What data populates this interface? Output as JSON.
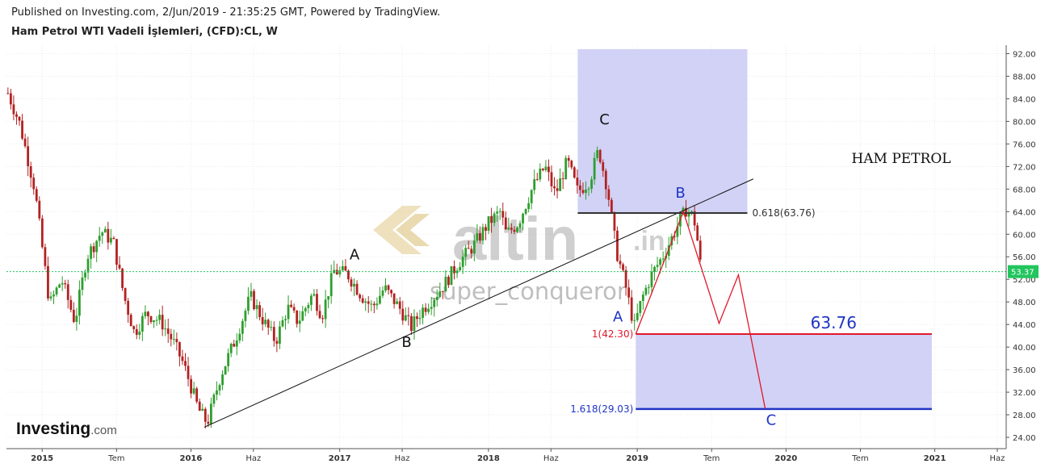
{
  "header": {
    "published": "Published on Investing.com, 2/Jun/2019 - 21:35:25 GMT, Powered by TradingView.",
    "symbol": "Ham Petrol WTI Vadeli İşlemleri, (CFD):CL, W"
  },
  "branding": {
    "name": "Investing",
    "suffix": ".com"
  },
  "watermark": {
    "logo_text": "altin",
    "logo_suffix": ".in",
    "user": "super_conqueror"
  },
  "colors": {
    "up": "#2e9e2e",
    "down": "#b22222",
    "zone": "#c9caf3",
    "red": "#e0182b",
    "blue": "#1f35c4",
    "current": "#22c55e"
  },
  "chart_data": {
    "type": "candlestick",
    "title": "HAM PETROL",
    "timeframe": "W",
    "xlim": [
      2014.76,
      2021.48
    ],
    "ylim": [
      22,
      93.5
    ],
    "y_ticks": [
      "92.00",
      "88.00",
      "84.00",
      "80.00",
      "76.00",
      "72.00",
      "68.00",
      "64.00",
      "60.00",
      "56.00",
      "52.00",
      "48.00",
      "44.00",
      "40.00",
      "36.00",
      "32.00",
      "28.00",
      "24.00"
    ],
    "x_ticks": [
      {
        "t": 2015.0,
        "label": "2015",
        "major": true
      },
      {
        "t": 2015.5,
        "label": "Tem",
        "major": false
      },
      {
        "t": 2016.0,
        "label": "2016",
        "major": true
      },
      {
        "t": 2016.42,
        "label": "Haz",
        "major": false
      },
      {
        "t": 2017.0,
        "label": "2017",
        "major": true
      },
      {
        "t": 2017.42,
        "label": "Haz",
        "major": false
      },
      {
        "t": 2018.0,
        "label": "2018",
        "major": true
      },
      {
        "t": 2018.42,
        "label": "Haz",
        "major": false
      },
      {
        "t": 2019.0,
        "label": "2019",
        "major": true
      },
      {
        "t": 2019.5,
        "label": "Tem",
        "major": false
      },
      {
        "t": 2020.0,
        "label": "2020",
        "major": true
      },
      {
        "t": 2020.5,
        "label": "Tem",
        "major": false
      },
      {
        "t": 2021.0,
        "label": "2021",
        "major": true
      },
      {
        "t": 2021.42,
        "label": "Haz",
        "major": false
      }
    ],
    "last_price": {
      "value": 53.37,
      "label": "53.37"
    },
    "price_path": [
      [
        2014.77,
        85.0
      ],
      [
        2014.85,
        79.5
      ],
      [
        2014.95,
        68.0
      ],
      [
        2015.05,
        47.5
      ],
      [
        2015.13,
        52.0
      ],
      [
        2015.22,
        44.5
      ],
      [
        2015.3,
        56.0
      ],
      [
        2015.4,
        60.5
      ],
      [
        2015.48,
        58.5
      ],
      [
        2015.55,
        49.0
      ],
      [
        2015.62,
        42.5
      ],
      [
        2015.7,
        46.0
      ],
      [
        2015.8,
        44.5
      ],
      [
        2015.88,
        41.0
      ],
      [
        2015.95,
        37.0
      ],
      [
        2016.05,
        29.0
      ],
      [
        2016.11,
        26.5
      ],
      [
        2016.2,
        35.0
      ],
      [
        2016.3,
        41.5
      ],
      [
        2016.4,
        49.0
      ],
      [
        2016.48,
        45.0
      ],
      [
        2016.57,
        41.0
      ],
      [
        2016.65,
        47.0
      ],
      [
        2016.72,
        44.5
      ],
      [
        2016.82,
        49.5
      ],
      [
        2016.88,
        45.5
      ],
      [
        2016.96,
        53.5
      ],
      [
        2017.05,
        53.0
      ],
      [
        2017.15,
        49.0
      ],
      [
        2017.22,
        47.0
      ],
      [
        2017.3,
        50.5
      ],
      [
        2017.4,
        47.0
      ],
      [
        2017.48,
        43.5
      ],
      [
        2017.55,
        46.5
      ],
      [
        2017.62,
        48.5
      ],
      [
        2017.7,
        51.0
      ],
      [
        2017.8,
        55.0
      ],
      [
        2017.9,
        58.0
      ],
      [
        2018.0,
        62.0
      ],
      [
        2018.08,
        64.0
      ],
      [
        2018.12,
        60.0
      ],
      [
        2018.2,
        62.0
      ],
      [
        2018.3,
        68.5
      ],
      [
        2018.38,
        72.0
      ],
      [
        2018.45,
        67.0
      ],
      [
        2018.53,
        73.0
      ],
      [
        2018.6,
        67.5
      ],
      [
        2018.68,
        69.5
      ],
      [
        2018.74,
        75.0
      ],
      [
        2018.8,
        68.0
      ],
      [
        2018.86,
        57.0
      ],
      [
        2018.92,
        51.0
      ],
      [
        2018.96,
        46.0
      ],
      [
        2018.98,
        43.5
      ],
      [
        2019.03,
        48.5
      ],
      [
        2019.1,
        53.0
      ],
      [
        2019.18,
        56.5
      ],
      [
        2019.28,
        62.0
      ],
      [
        2019.33,
        64.5
      ],
      [
        2019.38,
        63.0
      ],
      [
        2019.41,
        58.0
      ],
      [
        2019.43,
        53.4
      ]
    ],
    "labels": [
      {
        "text": "A",
        "t": 2017.1,
        "v": 55.5,
        "color": "#111"
      },
      {
        "text": "B",
        "t": 2017.45,
        "v": 40.0,
        "color": "#111"
      },
      {
        "text": "C",
        "t": 2018.78,
        "v": 79.5,
        "color": "#111"
      },
      {
        "text": "A",
        "t": 2018.87,
        "v": 44.5,
        "color": "#1f35c4"
      },
      {
        "text": "B",
        "t": 2019.29,
        "v": 66.5,
        "color": "#1f35c4"
      },
      {
        "text": "C",
        "t": 2019.9,
        "v": 26.2,
        "color": "#1f35c4"
      }
    ],
    "fib_levels": [
      {
        "label": "0.618(63.76)",
        "value": 63.76
      },
      {
        "label": "1(42.30)",
        "value": 42.3
      },
      {
        "label": "1.618(29.03)",
        "value": 29.03
      }
    ],
    "target_label": "63.76",
    "trendline": [
      [
        2016.09,
        25.8
      ],
      [
        2019.78,
        69.8
      ]
    ],
    "projection": [
      [
        2018.99,
        42.3
      ],
      [
        2019.31,
        64.0
      ],
      [
        2019.47,
        50.8
      ],
      [
        2019.55,
        44.2
      ],
      [
        2019.68,
        52.8
      ],
      [
        2019.86,
        29.1
      ]
    ],
    "zones": [
      {
        "t1": 2018.6,
        "t2": 2019.74,
        "v1": 63.76,
        "v2": 92.8
      },
      {
        "t1": 2018.99,
        "t2": 2020.98,
        "v1": 29.03,
        "v2": 42.3
      }
    ]
  }
}
